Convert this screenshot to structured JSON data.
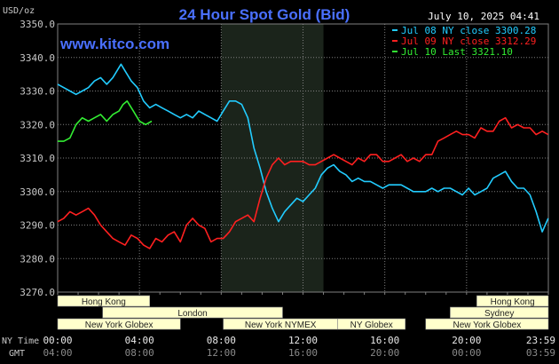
{
  "header": {
    "title": "24 Hour Spot Gold (Bid)",
    "unit_label": "USD/oz",
    "datetime": "July 10, 2025 04:41",
    "watermark": "www.kitco.com"
  },
  "legend": [
    {
      "label": "Jul 08 NY close 3300.28",
      "color": "#22ccff"
    },
    {
      "label": "Jul 09 NY close 3312.29",
      "color": "#ff2020"
    },
    {
      "label": "Jul 10 Last 3321.10",
      "color": "#33ee33"
    }
  ],
  "colors": {
    "background": "#000000",
    "grid": "#7f7f7f",
    "axis_text": "#c8c8c8",
    "title": "#4a70ff",
    "shade": "#1b241b",
    "session_bar_fill": "#ffffcc",
    "session_bar_text": "#222222"
  },
  "axis_labels": {
    "ny_time": "NY Time",
    "gmt": "GMT"
  },
  "sessions": [
    {
      "name": "Hong Kong",
      "row": 1,
      "start_hour": 0.0,
      "end_hour": 4.5
    },
    {
      "name": "London",
      "row": 2,
      "start_hour": 2.2,
      "end_hour": 11.0
    },
    {
      "name": "New York Globex",
      "row": 3,
      "start_hour": 0.0,
      "end_hour": 6.0
    },
    {
      "name": "New York NYMEX",
      "row": 3,
      "start_hour": 8.1,
      "end_hour": 13.7
    },
    {
      "name": "NY Globex",
      "row": 3,
      "start_hour": 13.7,
      "end_hour": 17.0
    },
    {
      "name": "Hong Kong",
      "row": 1,
      "start_hour": 20.5,
      "end_hour": 24.0
    },
    {
      "name": "Sydney",
      "row": 2,
      "start_hour": 19.2,
      "end_hour": 24.0
    },
    {
      "name": "New York Globex",
      "row": 3,
      "start_hour": 18.0,
      "end_hour": 24.0
    }
  ],
  "chart_data": {
    "type": "line",
    "title": "24 Hour Spot Gold (Bid)",
    "ylabel": "USD/oz",
    "ylim": [
      3270,
      3350
    ],
    "xlim_hours": [
      0,
      24
    ],
    "y_ticks": [
      "3350.0",
      "3340.0",
      "3330.0",
      "3320.0",
      "3310.0",
      "3300.0",
      "3290.0",
      "3280.0",
      "3270.0"
    ],
    "x_ticks_ny": [
      "00:00",
      "04:00",
      "08:00",
      "12:00",
      "16:00",
      "20:00",
      "23:59"
    ],
    "x_ticks_gmt": [
      "04:00",
      "08:00",
      "12:00",
      "16:00",
      "20:00",
      "00:00",
      "03:59"
    ],
    "shaded_hours": [
      8.0,
      13.0
    ],
    "grid": true,
    "series": [
      {
        "name": "Jul 08 NY close 3300.28",
        "color": "#22ccff",
        "x": [
          0,
          0.3,
          0.6,
          0.9,
          1.2,
          1.5,
          1.8,
          2.1,
          2.4,
          2.7,
          3.0,
          3.1,
          3.3,
          3.6,
          3.9,
          4.2,
          4.5,
          4.8,
          5.1,
          5.4,
          5.7,
          6.0,
          6.3,
          6.6,
          6.9,
          7.2,
          7.5,
          7.8,
          8.1,
          8.4,
          8.7,
          9.0,
          9.3,
          9.6,
          9.9,
          10.2,
          10.5,
          10.8,
          11.1,
          11.4,
          11.7,
          12.0,
          12.3,
          12.6,
          12.9,
          13.2,
          13.5,
          13.8,
          14.1,
          14.4,
          14.7,
          15.0,
          15.3,
          15.6,
          15.9,
          16.2,
          16.5,
          16.8,
          17.1,
          17.4,
          17.7,
          18.0,
          18.3,
          18.6,
          18.9,
          19.2,
          19.5,
          19.8,
          20.1,
          20.4,
          20.7,
          21.0,
          21.3,
          21.6,
          21.9,
          22.2,
          22.5,
          22.8,
          23.1,
          23.4,
          23.7,
          23.99
        ],
        "values": [
          3332,
          3331,
          3330,
          3329,
          3330,
          3331,
          3333,
          3334,
          3332,
          3334,
          3337,
          3338,
          3336,
          3333,
          3331,
          3327,
          3325,
          3326,
          3325,
          3324,
          3323,
          3322,
          3323,
          3322,
          3324,
          3323,
          3322,
          3321,
          3324,
          3327,
          3327,
          3326,
          3322,
          3313,
          3307,
          3300,
          3295,
          3291,
          3294,
          3296,
          3298,
          3297,
          3299,
          3301,
          3305,
          3307,
          3308,
          3306,
          3305,
          3303,
          3304,
          3303,
          3303,
          3302,
          3301,
          3302,
          3302,
          3302,
          3301,
          3300,
          3300,
          3300,
          3301,
          3300,
          3301,
          3301,
          3300,
          3299,
          3301,
          3299,
          3300,
          3301,
          3304,
          3305,
          3306,
          3303,
          3301,
          3301,
          3299,
          3294,
          3288,
          3292
        ]
      },
      {
        "name": "Jul 09 NY close 3312.29",
        "color": "#ff2020",
        "x": [
          0,
          0.3,
          0.6,
          0.9,
          1.2,
          1.5,
          1.8,
          2.1,
          2.4,
          2.7,
          3.0,
          3.3,
          3.6,
          3.9,
          4.2,
          4.5,
          4.8,
          5.1,
          5.4,
          5.7,
          6.0,
          6.3,
          6.6,
          6.9,
          7.2,
          7.5,
          7.8,
          8.1,
          8.4,
          8.7,
          9.0,
          9.3,
          9.6,
          9.9,
          10.2,
          10.5,
          10.8,
          11.1,
          11.4,
          11.7,
          12.0,
          12.3,
          12.6,
          12.9,
          13.2,
          13.5,
          13.8,
          14.1,
          14.4,
          14.7,
          15.0,
          15.3,
          15.6,
          15.9,
          16.2,
          16.5,
          16.8,
          17.1,
          17.4,
          17.7,
          18.0,
          18.3,
          18.6,
          18.9,
          19.2,
          19.5,
          19.8,
          20.1,
          20.4,
          20.7,
          21.0,
          21.3,
          21.6,
          21.9,
          22.2,
          22.5,
          22.8,
          23.1,
          23.4,
          23.7,
          23.99
        ],
        "values": [
          3291,
          3292,
          3294,
          3293,
          3294,
          3295,
          3293,
          3290,
          3288,
          3286,
          3285,
          3284,
          3287,
          3286,
          3284,
          3283,
          3286,
          3285,
          3287,
          3288,
          3285,
          3290,
          3292,
          3290,
          3289,
          3285,
          3286,
          3286,
          3288,
          3291,
          3292,
          3293,
          3291,
          3298,
          3304,
          3308,
          3310,
          3308,
          3309,
          3309,
          3309,
          3308,
          3308,
          3309,
          3310,
          3311,
          3310,
          3309,
          3308,
          3310,
          3309,
          3311,
          3311,
          3309,
          3309,
          3310,
          3311,
          3309,
          3310,
          3309,
          3311,
          3311,
          3315,
          3316,
          3317,
          3318,
          3317,
          3317,
          3316,
          3319,
          3318,
          3318,
          3321,
          3322,
          3319,
          3320,
          3319,
          3319,
          3317,
          3318,
          3317
        ]
      },
      {
        "name": "Jul 10 Last 3321.10",
        "color": "#33ee33",
        "x": [
          0,
          0.3,
          0.6,
          0.9,
          1.2,
          1.5,
          1.8,
          2.1,
          2.4,
          2.7,
          3.0,
          3.2,
          3.4,
          3.7,
          4.0,
          4.3,
          4.6
        ],
        "values": [
          3315,
          3315,
          3316,
          3320,
          3322,
          3321,
          3322,
          3323,
          3321,
          3323,
          3324,
          3326,
          3327,
          3324,
          3321,
          3320,
          3321
        ]
      }
    ]
  }
}
